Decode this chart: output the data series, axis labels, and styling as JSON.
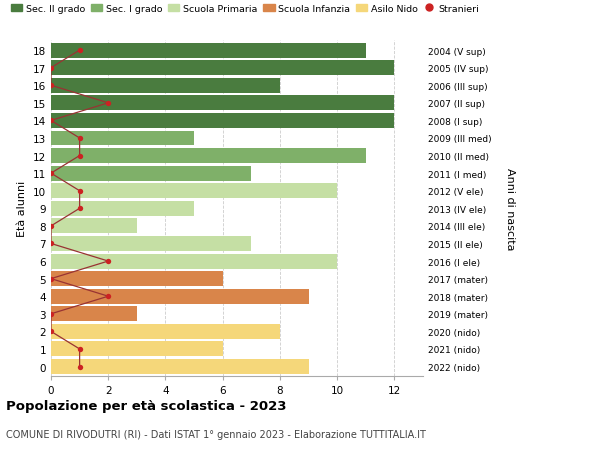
{
  "ages": [
    18,
    17,
    16,
    15,
    14,
    13,
    12,
    11,
    10,
    9,
    8,
    7,
    6,
    5,
    4,
    3,
    2,
    1,
    0
  ],
  "right_labels": [
    "2004 (V sup)",
    "2005 (IV sup)",
    "2006 (III sup)",
    "2007 (II sup)",
    "2008 (I sup)",
    "2009 (III med)",
    "2010 (II med)",
    "2011 (I med)",
    "2012 (V ele)",
    "2013 (IV ele)",
    "2014 (III ele)",
    "2015 (II ele)",
    "2016 (I ele)",
    "2017 (mater)",
    "2018 (mater)",
    "2019 (mater)",
    "2020 (nido)",
    "2021 (nido)",
    "2022 (nido)"
  ],
  "bar_values": [
    11,
    12,
    8,
    12,
    12,
    5,
    11,
    7,
    10,
    5,
    3,
    7,
    10,
    6,
    9,
    3,
    8,
    6,
    9
  ],
  "bar_colors": [
    "#4a7c3f",
    "#4a7c3f",
    "#4a7c3f",
    "#4a7c3f",
    "#4a7c3f",
    "#7fb069",
    "#7fb069",
    "#7fb069",
    "#c5dfa4",
    "#c5dfa4",
    "#c5dfa4",
    "#c5dfa4",
    "#c5dfa4",
    "#d9854a",
    "#d9854a",
    "#d9854a",
    "#f5d77a",
    "#f5d77a",
    "#f5d77a"
  ],
  "stranieri_values": [
    1,
    0,
    0,
    2,
    0,
    1,
    1,
    0,
    1,
    1,
    0,
    0,
    2,
    0,
    2,
    0,
    0,
    1,
    1
  ],
  "legend_labels": [
    "Sec. II grado",
    "Sec. I grado",
    "Scuola Primaria",
    "Scuola Infanzia",
    "Asilo Nido",
    "Stranieri"
  ],
  "legend_colors": [
    "#4a7c3f",
    "#7fb069",
    "#c5dfa4",
    "#d9854a",
    "#f5d77a",
    "#cc2222"
  ],
  "title": "Popolazione per età scolastica - 2023",
  "subtitle": "COMUNE DI RIVODUTRI (RI) - Dati ISTAT 1° gennaio 2023 - Elaborazione TUTTITALIA.IT",
  "ylabel": "Età alunni",
  "right_ylabel": "Anni di nascita",
  "xlim": [
    0,
    13
  ],
  "background_color": "#ffffff",
  "grid_color": "#cccccc",
  "stranieri_color": "#cc2222",
  "stranieri_line_color": "#993333"
}
